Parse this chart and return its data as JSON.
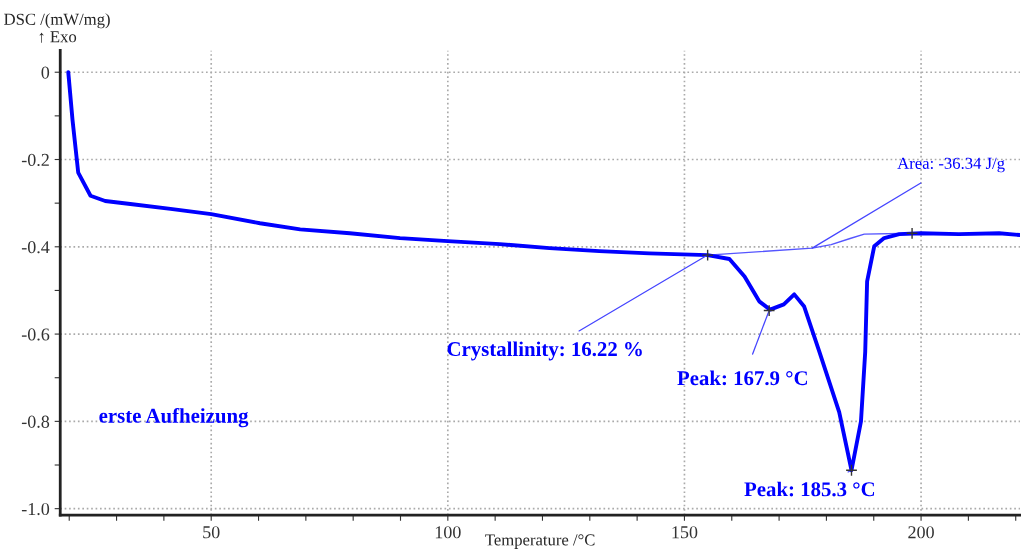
{
  "chart_data": {
    "type": "line",
    "xlabel": "Temperature /°C",
    "ylabel": "DSC /(mW/mg)\n↑ Exo",
    "xlim": [
      18.1,
      220.9
    ],
    "ylim": [
      -1.015,
      0.05
    ],
    "xticks": [
      {
        "value": 20,
        "label": null
      },
      {
        "value": 30,
        "label": null
      },
      {
        "value": 40,
        "label": null
      },
      50,
      {
        "value": 60,
        "label": null
      },
      {
        "value": 70,
        "label": null
      },
      {
        "value": 80,
        "label": null
      },
      {
        "value": 90,
        "label": null
      },
      100,
      {
        "value": 110,
        "label": null
      },
      {
        "value": 120,
        "label": null
      },
      {
        "value": 130,
        "label": null
      },
      {
        "value": 140,
        "label": null
      },
      150,
      {
        "value": 160,
        "label": null
      },
      {
        "value": 170,
        "label": null
      },
      {
        "value": 180,
        "label": null
      },
      {
        "value": 190,
        "label": null
      },
      200,
      {
        "value": 210,
        "label": null
      },
      {
        "value": 220,
        "label": null
      }
    ],
    "yticks": [
      {
        "value": -1.0,
        "label": "-1.0"
      },
      {
        "value": -0.9,
        "label": null
      },
      {
        "value": -0.8,
        "label": "-0.8"
      },
      {
        "value": -0.7,
        "label": null
      },
      {
        "value": -0.6,
        "label": "-0.6"
      },
      {
        "value": -0.5,
        "label": null
      },
      {
        "value": -0.4,
        "label": "-0.4"
      },
      {
        "value": -0.3,
        "label": null
      },
      {
        "value": -0.2,
        "label": "-0.2"
      },
      {
        "value": -0.1,
        "label": null
      },
      0
    ],
    "grid": true,
    "line_style": "solid",
    "series": [
      {
        "color": "#0000ff",
        "x": [
          19.8,
          20.7,
          21.9,
          24.5,
          27.6,
          32.9,
          41.4,
          50,
          60.3,
          68.8,
          79.3,
          89.9,
          100,
          111,
          121.5,
          132,
          142.6,
          154.9,
          159.5,
          162.7,
          165.8,
          168.1,
          171,
          173.2,
          175.3,
          178.5,
          182.7,
          185.3,
          187.3,
          188.2,
          188.6,
          190.1,
          192.2,
          195.4,
          200,
          208,
          216.5,
          220.9
        ],
        "values": [
          0,
          -0.11,
          -0.23,
          -0.283,
          -0.295,
          -0.302,
          -0.313,
          -0.325,
          -0.346,
          -0.36,
          -0.369,
          -0.38,
          -0.387,
          -0.394,
          -0.403,
          -0.41,
          -0.415,
          -0.419,
          -0.428,
          -0.468,
          -0.525,
          -0.544,
          -0.532,
          -0.509,
          -0.537,
          -0.64,
          -0.779,
          -0.912,
          -0.8,
          -0.64,
          -0.479,
          -0.399,
          -0.38,
          -0.371,
          -0.369,
          -0.371,
          -0.369,
          -0.373
        ]
      },
      {
        "color": "#5555ff",
        "x": [
          154.9,
          177,
          181,
          185,
          188,
          198.1
        ],
        "values": [
          -0.419,
          -0.403,
          -0.395,
          -0.381,
          -0.371,
          -0.369
        ]
      },
      {
        "type": "scatter",
        "marker": "cross",
        "color": "#333333",
        "x": [
          154.9,
          167.9,
          185.3,
          198.1
        ],
        "values": [
          -0.419,
          -0.546,
          -0.912,
          -0.369
        ]
      }
    ],
    "annotations": [
      {
        "text": "Crystallinity: 16.22 %",
        "x": 154.9,
        "y": -0.419
      },
      {
        "text": "Peak: 167.9 °C",
        "x": 167.9,
        "y": -0.546
      },
      {
        "text": "Peak: 185.3 °C",
        "x": 185.3,
        "y": -0.912
      },
      {
        "text": "Area: -36.34 J/g",
        "x": 177,
        "y": -0.403
      },
      "erste Aufheizung"
    ]
  }
}
